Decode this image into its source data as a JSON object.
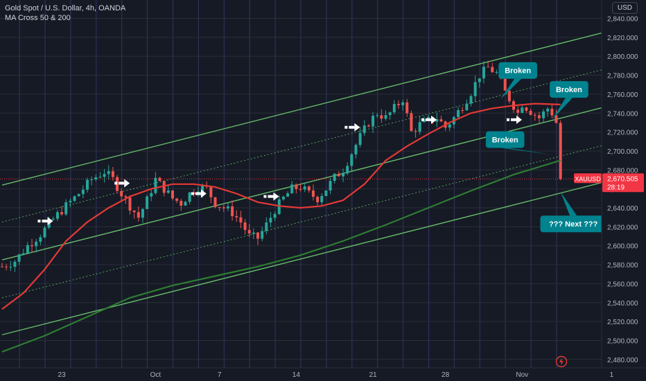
{
  "header": {
    "symbol_line": "Gold Spot / U.S. Dollar, 4h, OANDA",
    "indicator_line": "MA Cross 50 & 200"
  },
  "currency_button": "USD",
  "price_tag": {
    "symbol": "XAUUSD",
    "price": "2,670.505",
    "countdown": "28:19",
    "color": "#f23645"
  },
  "colors": {
    "background": "#161a25",
    "candle_up": "#26a69a",
    "candle_down": "#ef5350",
    "ma50": "#e53935",
    "ma200": "#2e7d32",
    "channel": "#66bb6a",
    "callout": "#00838f",
    "grid": "#2a2e39",
    "session_lines": "#3c3f7a"
  },
  "chart_data": {
    "type": "candlestick",
    "title": "Gold Spot / U.S. Dollar, 4h, OANDA",
    "ylim": [
      2470,
      2850
    ],
    "y_ticks": [
      2480,
      2500,
      2520,
      2540,
      2560,
      2580,
      2600,
      2620,
      2640,
      2660,
      2680,
      2700,
      2720,
      2740,
      2760,
      2780,
      2800,
      2820,
      2840
    ],
    "y_tick_labels": [
      "2,480.000",
      "2,500.000",
      "2,520.000",
      "2,540.000",
      "2,560.000",
      "2,580.000",
      "2,600.000",
      "2,620.000",
      "2,640.000",
      "2,660.000",
      "2,680.000",
      "2,700.000",
      "2,720.000",
      "2,740.000",
      "2,760.000",
      "2,780.000",
      "2,800.000",
      "2,820.000",
      "2,840.000"
    ],
    "x_tick_labels": [
      "23",
      "Oct",
      "7",
      "14",
      "21",
      "28",
      "Nov",
      "1"
    ],
    "x_tick_bar_index": [
      14,
      36,
      51,
      69,
      87,
      104,
      122,
      143
    ],
    "bar_count": 132,
    "price_path": [
      [
        0,
        2578
      ],
      [
        3,
        2584
      ],
      [
        6,
        2600
      ],
      [
        9,
        2612
      ],
      [
        12,
        2628
      ],
      [
        15,
        2642
      ],
      [
        18,
        2655
      ],
      [
        21,
        2670
      ],
      [
        24,
        2678
      ],
      [
        26,
        2670
      ],
      [
        28,
        2655
      ],
      [
        30,
        2642
      ],
      [
        32,
        2630
      ],
      [
        34,
        2648
      ],
      [
        36,
        2670
      ],
      [
        38,
        2660
      ],
      [
        40,
        2650
      ],
      [
        42,
        2645
      ],
      [
        44,
        2655
      ],
      [
        46,
        2662
      ],
      [
        48,
        2660
      ],
      [
        50,
        2645
      ],
      [
        52,
        2640
      ],
      [
        54,
        2635
      ],
      [
        56,
        2625
      ],
      [
        58,
        2610
      ],
      [
        60,
        2608
      ],
      [
        62,
        2622
      ],
      [
        64,
        2638
      ],
      [
        66,
        2650
      ],
      [
        68,
        2660
      ],
      [
        70,
        2662
      ],
      [
        72,
        2655
      ],
      [
        74,
        2650
      ],
      [
        76,
        2660
      ],
      [
        78,
        2672
      ],
      [
        80,
        2680
      ],
      [
        82,
        2698
      ],
      [
        84,
        2715
      ],
      [
        86,
        2730
      ],
      [
        88,
        2740
      ],
      [
        90,
        2735
      ],
      [
        92,
        2745
      ],
      [
        94,
        2755
      ],
      [
        96,
        2720
      ],
      [
        98,
        2728
      ],
      [
        100,
        2732
      ],
      [
        102,
        2735
      ],
      [
        104,
        2725
      ],
      [
        106,
        2735
      ],
      [
        108,
        2748
      ],
      [
        110,
        2762
      ],
      [
        112,
        2780
      ],
      [
        114,
        2788
      ],
      [
        116,
        2782
      ],
      [
        118,
        2762
      ],
      [
        120,
        2748
      ],
      [
        121,
        2740
      ],
      [
        122,
        2750
      ],
      [
        124,
        2742
      ],
      [
        126,
        2735
      ],
      [
        128,
        2745
      ],
      [
        129,
        2740
      ],
      [
        130,
        2730
      ],
      [
        131,
        2670.5
      ]
    ],
    "ma50": [
      [
        0,
        2533
      ],
      [
        5,
        2550
      ],
      [
        10,
        2575
      ],
      [
        15,
        2605
      ],
      [
        20,
        2625
      ],
      [
        25,
        2640
      ],
      [
        30,
        2652
      ],
      [
        35,
        2660
      ],
      [
        40,
        2665
      ],
      [
        45,
        2665
      ],
      [
        50,
        2662
      ],
      [
        55,
        2655
      ],
      [
        60,
        2646
      ],
      [
        65,
        2642
      ],
      [
        70,
        2640
      ],
      [
        75,
        2642
      ],
      [
        80,
        2648
      ],
      [
        85,
        2665
      ],
      [
        90,
        2690
      ],
      [
        95,
        2705
      ],
      [
        100,
        2718
      ],
      [
        105,
        2730
      ],
      [
        110,
        2740
      ],
      [
        115,
        2745
      ],
      [
        120,
        2748
      ],
      [
        125,
        2750
      ],
      [
        131,
        2749
      ]
    ],
    "ma200": [
      [
        0,
        2488
      ],
      [
        10,
        2505
      ],
      [
        20,
        2525
      ],
      [
        30,
        2545
      ],
      [
        40,
        2558
      ],
      [
        50,
        2568
      ],
      [
        60,
        2578
      ],
      [
        70,
        2590
      ],
      [
        80,
        2605
      ],
      [
        90,
        2622
      ],
      [
        100,
        2640
      ],
      [
        110,
        2658
      ],
      [
        120,
        2675
      ],
      [
        131,
        2690
      ]
    ],
    "channel_lines": [
      {
        "name": "upper",
        "style": "solid",
        "from": [
          0,
          2664
        ],
        "to": [
          141,
          2825
        ]
      },
      {
        "name": "upper-mid",
        "style": "dotted",
        "from": [
          0,
          2625
        ],
        "to": [
          141,
          2786
        ]
      },
      {
        "name": "middle",
        "style": "solid",
        "from": [
          0,
          2585
        ],
        "to": [
          141,
          2746
        ]
      },
      {
        "name": "lower-mid",
        "style": "dotted",
        "from": [
          0,
          2545
        ],
        "to": [
          141,
          2706
        ]
      },
      {
        "name": "lower",
        "style": "solid",
        "from": [
          0,
          2506
        ],
        "to": [
          141,
          2667
        ]
      }
    ],
    "arrows": [
      {
        "bar": 10,
        "price": 2626
      },
      {
        "bar": 28,
        "price": 2666
      },
      {
        "bar": 46,
        "price": 2655
      },
      {
        "bar": 63,
        "price": 2652
      },
      {
        "bar": 82,
        "price": 2725
      },
      {
        "bar": 100,
        "price": 2733
      },
      {
        "bar": 120,
        "price": 2733
      }
    ],
    "callouts": [
      {
        "text": "Broken",
        "box_price": 2785,
        "box_bar": 121,
        "tail_bar": 117,
        "tail_price": 2755
      },
      {
        "text": "Broken",
        "box_price": 2765,
        "box_bar": 133,
        "tail_bar": 129,
        "tail_price": 2733
      },
      {
        "text": "Broken",
        "box_price": 2712,
        "box_bar": 118,
        "tail_bar": 129,
        "tail_price": 2696
      },
      {
        "text": "??? Next ???",
        "box_price": 2623,
        "box_bar": 134,
        "tail_bar": 131,
        "tail_price": 2657
      }
    ],
    "last_price": 2670.505
  }
}
